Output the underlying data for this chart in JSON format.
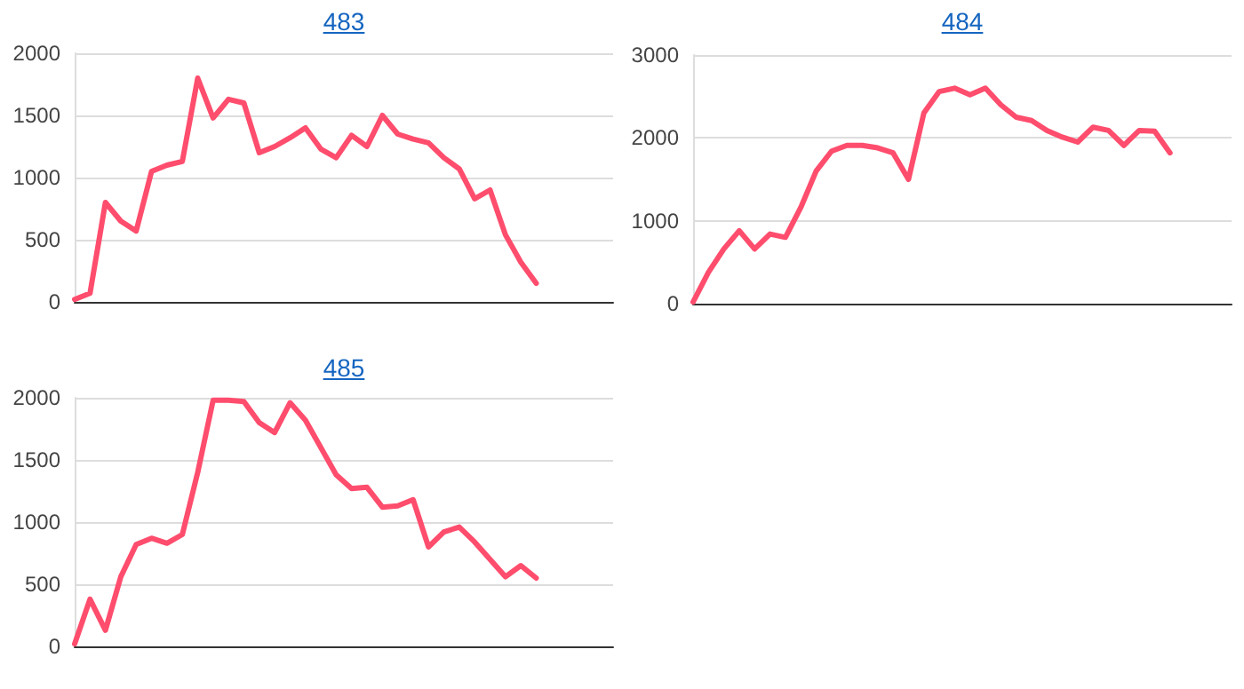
{
  "chart_data": [
    {
      "type": "line",
      "title": "483",
      "categories": [
        null,
        null,
        null,
        null,
        null,
        null,
        null,
        null,
        null,
        null,
        null,
        null,
        null,
        null,
        null,
        null,
        null,
        null,
        null,
        null,
        null,
        null,
        null,
        null,
        null,
        null,
        null,
        null,
        null,
        null,
        null,
        null,
        null,
        null,
        null,
        null
      ],
      "series": [
        {
          "color": "#ff4d6d",
          "values": [
            20,
            70,
            800,
            650,
            570,
            1050,
            1100,
            1130,
            1800,
            1480,
            1630,
            1600,
            1200,
            1250,
            1320,
            1400,
            1230,
            1160,
            1340,
            1250,
            1500,
            1350,
            1310,
            1280,
            1160,
            1070,
            830,
            900,
            540,
            320,
            150,
            null,
            null,
            null,
            null,
            null
          ]
        }
      ],
      "ylim": [
        0,
        2000
      ],
      "yticks": [
        0,
        500,
        1000,
        1500,
        2000
      ],
      "grid": "y",
      "marker": "none",
      "line_style": "solid"
    },
    {
      "type": "line",
      "title": "484",
      "categories": [
        null,
        null,
        null,
        null,
        null,
        null,
        null,
        null,
        null,
        null,
        null,
        null,
        null,
        null,
        null,
        null,
        null,
        null,
        null,
        null,
        null,
        null,
        null,
        null,
        null,
        null,
        null,
        null,
        null,
        null,
        null,
        null,
        null,
        null,
        null,
        null
      ],
      "series": [
        {
          "color": "#ff4d6d",
          "values": [
            20,
            380,
            660,
            880,
            660,
            840,
            800,
            1160,
            1600,
            1840,
            1910,
            1910,
            1880,
            1820,
            1500,
            2300,
            2560,
            2600,
            2520,
            2600,
            2400,
            2250,
            2210,
            2090,
            2010,
            1950,
            2130,
            2090,
            1910,
            2090,
            2080,
            1820,
            null,
            null,
            null,
            null
          ]
        }
      ],
      "ylim": [
        0,
        3000
      ],
      "yticks": [
        0,
        1000,
        2000,
        3000
      ],
      "grid": "y",
      "marker": "none",
      "line_style": "solid"
    },
    {
      "type": "line",
      "title": "485",
      "categories": [
        null,
        null,
        null,
        null,
        null,
        null,
        null,
        null,
        null,
        null,
        null,
        null,
        null,
        null,
        null,
        null,
        null,
        null,
        null,
        null,
        null,
        null,
        null,
        null,
        null,
        null,
        null,
        null,
        null,
        null,
        null,
        null,
        null,
        null,
        null,
        null
      ],
      "series": [
        {
          "color": "#ff4d6d",
          "values": [
            20,
            380,
            130,
            560,
            820,
            870,
            830,
            900,
            1400,
            1980,
            1980,
            1970,
            1800,
            1720,
            1960,
            1820,
            1600,
            1380,
            1270,
            1280,
            1120,
            1130,
            1180,
            800,
            920,
            960,
            840,
            700,
            560,
            650,
            550,
            null,
            null,
            null,
            null,
            null
          ]
        }
      ],
      "ylim": [
        0,
        2000
      ],
      "yticks": [
        0,
        500,
        1000,
        1500,
        2000
      ],
      "grid": "y",
      "marker": "none",
      "line_style": "solid"
    }
  ]
}
